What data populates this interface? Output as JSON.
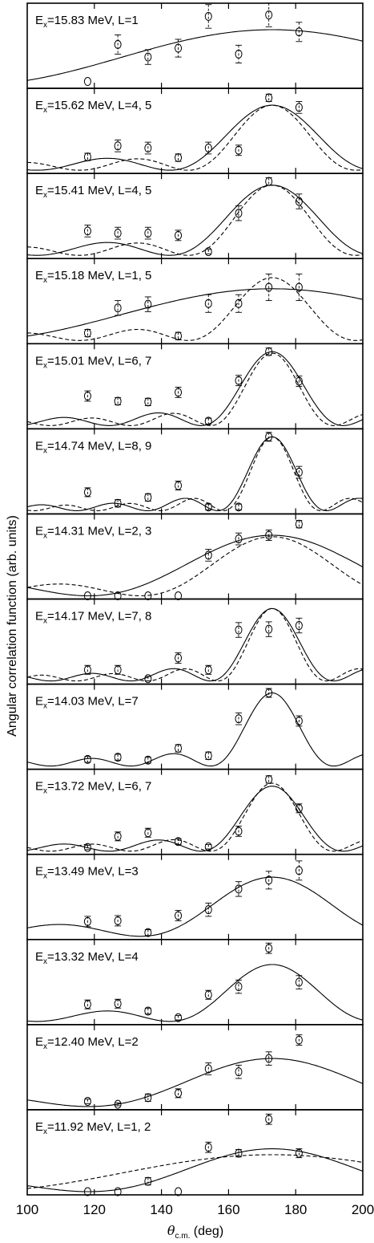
{
  "chart_data": {
    "type": "scatter",
    "title": "",
    "xlabel": "θc.m. (deg)",
    "xlabel_main": "θ",
    "xlabel_sub": "c.m.",
    "xlabel_unit": " (deg)",
    "ylabel": "Angular correlation function (arb. units)",
    "xlim": [
      100,
      200
    ],
    "xticks": [
      100,
      120,
      140,
      160,
      180,
      200
    ],
    "grid": false,
    "legend": "none",
    "panels": [
      {
        "label_prefix": "E",
        "label_sub": "x",
        "label_rest": "=15.83 MeV, L=1",
        "points": [
          [
            118,
            0.05,
            0
          ],
          [
            127,
            0.55,
            0.13
          ],
          [
            136,
            0.38,
            0.1
          ],
          [
            145,
            0.5,
            0.12
          ],
          [
            154,
            0.93,
            0.16
          ],
          [
            163,
            0.42,
            0.12
          ],
          [
            172,
            0.95,
            0.16
          ],
          [
            181,
            0.72,
            0.13
          ]
        ],
        "curves": [
          {
            "style": "solid",
            "L": [
              1
            ],
            "A": 0.75,
            "B": 0.2
          }
        ]
      },
      {
        "label_prefix": "E",
        "label_sub": "x",
        "label_rest": "=15.62 MeV, L=4, 5",
        "points": [
          [
            118,
            0.18,
            0.05
          ],
          [
            127,
            0.33,
            0.08
          ],
          [
            136,
            0.3,
            0.08
          ],
          [
            145,
            0.17,
            0.05
          ],
          [
            154,
            0.3,
            0.08
          ],
          [
            163,
            0.27,
            0.07
          ],
          [
            172,
            0.98,
            0.05
          ],
          [
            181,
            0.85,
            0.08
          ]
        ],
        "curves": [
          {
            "style": "solid",
            "L": [
              4
            ],
            "A": 0.88,
            "B": 0.17
          },
          {
            "style": "dashed",
            "L": [
              5
            ],
            "A": 0.88,
            "B": 0.15
          }
        ]
      },
      {
        "label_prefix": "E",
        "label_sub": "x",
        "label_rest": "=15.41 MeV, L=4, 5",
        "points": [
          [
            118,
            0.33,
            0.08
          ],
          [
            127,
            0.3,
            0.08
          ],
          [
            136,
            0.3,
            0.08
          ],
          [
            145,
            0.27,
            0.07
          ],
          [
            154,
            0.05,
            0.03
          ],
          [
            163,
            0.57,
            0.1
          ],
          [
            172,
            1.0,
            0.05
          ],
          [
            181,
            0.73,
            0.1
          ]
        ],
        "curves": [
          {
            "style": "solid",
            "L": [
              4
            ],
            "A": 0.95,
            "B": 0.17
          },
          {
            "style": "dashed",
            "L": [
              5
            ],
            "A": 0.95,
            "B": 0.15
          }
        ]
      },
      {
        "label_prefix": "E",
        "label_sub": "x",
        "label_rest": "=15.18 MeV, L=1, 5",
        "points": [
          [
            118,
            0.1,
            0.05
          ],
          [
            127,
            0.44,
            0.1
          ],
          [
            136,
            0.49,
            0.1
          ],
          [
            145,
            0.06,
            0.05
          ],
          [
            154,
            0.5,
            0.12
          ],
          [
            163,
            0.5,
            0.12
          ],
          [
            172,
            0.72,
            0.18
          ],
          [
            181,
            0.72,
            0.18
          ]
        ],
        "curves": [
          {
            "style": "solid",
            "L": [
              1
            ],
            "A": 0.7,
            "B": 0.2
          },
          {
            "style": "dashed",
            "L": [
              5
            ],
            "A": 0.85,
            "B": 0.15
          }
        ]
      },
      {
        "label_prefix": "E",
        "label_sub": "x",
        "label_rest": "=15.01 MeV, L=6, 7",
        "points": [
          [
            118,
            0.4,
            0.07
          ],
          [
            127,
            0.33,
            0.05
          ],
          [
            136,
            0.32,
            0.05
          ],
          [
            145,
            0.45,
            0.07
          ],
          [
            154,
            0.06,
            0.04
          ],
          [
            163,
            0.61,
            0.07
          ],
          [
            172,
            1.0,
            0.05
          ],
          [
            181,
            0.6,
            0.07
          ]
        ],
        "curves": [
          {
            "style": "solid",
            "L": [
              6
            ],
            "A": 1.0,
            "B": 0.17
          },
          {
            "style": "dashed",
            "L": [
              7
            ],
            "A": 0.98,
            "B": 0.16
          }
        ]
      },
      {
        "label_prefix": "E",
        "label_sub": "x",
        "label_rest": "=14.74 MeV, L=8, 9",
        "points": [
          [
            118,
            0.25,
            0.06
          ],
          [
            127,
            0.1,
            0.05
          ],
          [
            136,
            0.18,
            0.05
          ],
          [
            145,
            0.34,
            0.06
          ],
          [
            154,
            0.05,
            0.04
          ],
          [
            163,
            0.05,
            0.04
          ],
          [
            172,
            1.0,
            0.06
          ],
          [
            181,
            0.52,
            0.08
          ]
        ],
        "curves": [
          {
            "style": "solid",
            "L": [
              8
            ],
            "A": 1.0,
            "B": 0.17
          },
          {
            "style": "dashed",
            "L": [
              9
            ],
            "A": 1.0,
            "B": 0.16
          }
        ]
      },
      {
        "label_prefix": "E",
        "label_sub": "x",
        "label_rest": "=14.31 MeV, L=2, 3",
        "points": [
          [
            118,
            0.0,
            0
          ],
          [
            127,
            0.0,
            0
          ],
          [
            136,
            0.0,
            0
          ],
          [
            145,
            0.0,
            0
          ],
          [
            154,
            0.55,
            0.08
          ],
          [
            163,
            0.77,
            0.08
          ],
          [
            172,
            0.82,
            0.07
          ],
          [
            181,
            0.97,
            0.05
          ]
        ],
        "curves": [
          {
            "style": "solid",
            "L": [
              2
            ],
            "A": 0.82,
            "B": 0.2
          },
          {
            "style": "dashed",
            "L": [
              3
            ],
            "A": 0.8,
            "B": 0.16
          }
        ]
      },
      {
        "label_prefix": "E",
        "label_sub": "x",
        "label_rest": "=14.17 MeV, L=7, 8",
        "points": [
          [
            118,
            0.15,
            0.06
          ],
          [
            127,
            0.15,
            0.06
          ],
          [
            136,
            0.03,
            0.03
          ],
          [
            145,
            0.31,
            0.07
          ],
          [
            154,
            0.15,
            0.06
          ],
          [
            163,
            0.69,
            0.1
          ],
          [
            172,
            0.7,
            0.1
          ],
          [
            181,
            0.75,
            0.1
          ]
        ],
        "curves": [
          {
            "style": "solid",
            "L": [
              7
            ],
            "A": 0.98,
            "B": 0.17
          },
          {
            "style": "dashed",
            "L": [
              8
            ],
            "A": 0.98,
            "B": 0.16
          }
        ]
      },
      {
        "label_prefix": "E",
        "label_sub": "x",
        "label_rest": "=14.03 MeV, L=7",
        "points": [
          [
            118,
            0.09,
            0.04
          ],
          [
            127,
            0.12,
            0.04
          ],
          [
            136,
            0.08,
            0.04
          ],
          [
            145,
            0.24,
            0.05
          ],
          [
            154,
            0.14,
            0.05
          ],
          [
            163,
            0.64,
            0.08
          ],
          [
            172,
            0.99,
            0.06
          ],
          [
            181,
            0.61,
            0.07
          ]
        ],
        "curves": [
          {
            "style": "solid",
            "L": [
              7
            ],
            "A": 0.99,
            "B": 0.17
          }
        ]
      },
      {
        "label_prefix": "E",
        "label_sub": "x",
        "label_rest": "=13.72 MeV, L=6, 7",
        "points": [
          [
            118,
            0.05,
            0.03
          ],
          [
            127,
            0.2,
            0.06
          ],
          [
            136,
            0.25,
            0.06
          ],
          [
            145,
            0.13,
            0.04
          ],
          [
            154,
            0.06,
            0.03
          ],
          [
            163,
            0.27,
            0.07
          ],
          [
            172,
            0.97,
            0.05
          ],
          [
            181,
            0.58,
            0.06
          ]
        ],
        "curves": [
          {
            "style": "solid",
            "L": [
              6
            ],
            "A": 0.88,
            "B": 0.17
          },
          {
            "style": "dashed",
            "L": [
              7
            ],
            "A": 0.92,
            "B": 0.16
          }
        ]
      },
      {
        "label_prefix": "E",
        "label_sub": "x",
        "label_rest": "=13.49 MeV, L=3",
        "points": [
          [
            118,
            0.2,
            0.07
          ],
          [
            127,
            0.21,
            0.07
          ],
          [
            136,
            0.05,
            0.04
          ],
          [
            145,
            0.28,
            0.07
          ],
          [
            154,
            0.36,
            0.09
          ],
          [
            163,
            0.64,
            0.1
          ],
          [
            172,
            0.76,
            0.12
          ],
          [
            181,
            0.89,
            0.13
          ]
        ],
        "curves": [
          {
            "style": "solid",
            "L": [
              3
            ],
            "A": 0.8,
            "B": 0.2
          }
        ]
      },
      {
        "label_prefix": "E",
        "label_sub": "x",
        "label_rest": "=13.32 MeV, L=4",
        "points": [
          [
            118,
            0.23,
            0.06
          ],
          [
            127,
            0.24,
            0.06
          ],
          [
            136,
            0.14,
            0.04
          ],
          [
            145,
            0.05,
            0.03
          ],
          [
            154,
            0.36,
            0.06
          ],
          [
            163,
            0.47,
            0.09
          ],
          [
            172,
            0.99,
            0.07
          ],
          [
            181,
            0.53,
            0.09
          ]
        ],
        "curves": [
          {
            "style": "solid",
            "L": [
              4
            ],
            "A": 0.77,
            "B": 0.19
          }
        ]
      },
      {
        "label_prefix": "E",
        "label_sub": "x",
        "label_rest": "=12.40 MeV, L=2",
        "points": [
          [
            118,
            0.07,
            0.03
          ],
          [
            127,
            0.03,
            0.02
          ],
          [
            136,
            0.12,
            0.05
          ],
          [
            145,
            0.18,
            0.06
          ],
          [
            154,
            0.51,
            0.08
          ],
          [
            163,
            0.47,
            0.09
          ],
          [
            172,
            0.65,
            0.09
          ],
          [
            181,
            0.9,
            0.07
          ]
        ],
        "curves": [
          {
            "style": "solid",
            "L": [
              2
            ],
            "A": 0.65,
            "B": 0.22
          }
        ]
      },
      {
        "label_prefix": "E",
        "label_sub": "x",
        "label_rest": "=11.92 MeV, L=1, 2",
        "points": [
          [
            118,
            0.0,
            0
          ],
          [
            127,
            0.0,
            0
          ],
          [
            136,
            0.14,
            0.05
          ],
          [
            145,
            0.0,
            0
          ],
          [
            154,
            0.6,
            0.07
          ],
          [
            163,
            0.52,
            0.05
          ],
          [
            172,
            0.98,
            0.07
          ],
          [
            181,
            0.52,
            0.06
          ]
        ],
        "curves": [
          {
            "style": "solid",
            "L": [
              2
            ],
            "A": 0.58,
            "B": 0.22
          },
          {
            "style": "dashed",
            "L": [
              1
            ],
            "A": 0.5,
            "B": 0.2
          }
        ]
      }
    ]
  }
}
